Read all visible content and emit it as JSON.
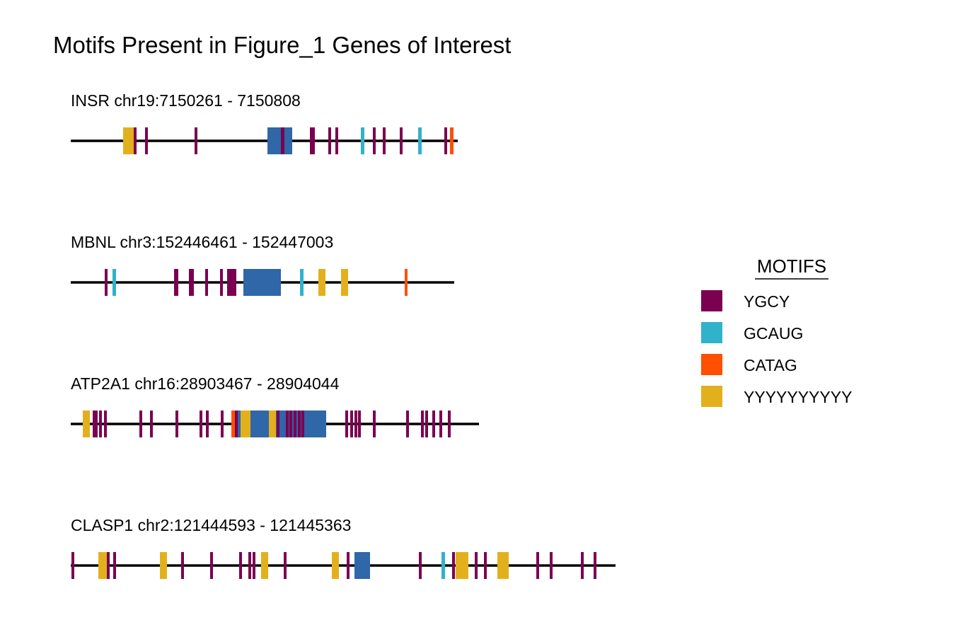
{
  "title": "Motifs Present in Figure_1 Genes of Interest",
  "legend": {
    "title": "MOTIFS",
    "items": [
      {
        "key": "YGCY",
        "label": "YGCY",
        "color": "#7b0051"
      },
      {
        "key": "GCAUG",
        "label": "GCAUG",
        "color": "#31b2cb"
      },
      {
        "key": "CATAG",
        "label": "CATAG",
        "color": "#ff4f00"
      },
      {
        "key": "YYYYYYYYYY",
        "label": "YYYYYYYYYY",
        "color": "#e3b01d"
      }
    ]
  },
  "colors": {
    "backbone": "#000000",
    "exon": "#2f67a8"
  },
  "genes": [
    {
      "name": "INSR",
      "label": "INSR chr19:7150261 - 7150808",
      "start": 7150261,
      "end": 7150808,
      "exons": [
        [
          7150539,
          7150574
        ]
      ],
      "motifs": [
        {
          "type": "YYYYYYYYYY",
          "start": 7150335,
          "end": 7150351
        },
        {
          "type": "YGCY",
          "start": 7150350,
          "end": 7150354
        },
        {
          "type": "YGCY",
          "start": 7150366,
          "end": 7150370
        },
        {
          "type": "YGCY",
          "start": 7150436,
          "end": 7150440
        },
        {
          "type": "YGCY",
          "start": 7150558,
          "end": 7150563
        },
        {
          "type": "YGCY",
          "start": 7150599,
          "end": 7150606
        },
        {
          "type": "YGCY",
          "start": 7150625,
          "end": 7150629
        },
        {
          "type": "YGCY",
          "start": 7150635,
          "end": 7150639
        },
        {
          "type": "GCAUG",
          "start": 7150671,
          "end": 7150676
        },
        {
          "type": "YGCY",
          "start": 7150688,
          "end": 7150692
        },
        {
          "type": "YGCY",
          "start": 7150702,
          "end": 7150706
        },
        {
          "type": "YGCY",
          "start": 7150726,
          "end": 7150730
        },
        {
          "type": "GCAUG",
          "start": 7150752,
          "end": 7150757
        },
        {
          "type": "YGCY",
          "start": 7150789,
          "end": 7150793
        },
        {
          "type": "CATAG",
          "start": 7150797,
          "end": 7150802
        }
      ]
    },
    {
      "name": "MBNL",
      "label": "MBNL chr3:152446461 - 152447003",
      "start": 152446461,
      "end": 152447003,
      "exons": [
        [
          152446705,
          152446758
        ]
      ],
      "motifs": [
        {
          "type": "YGCY",
          "start": 152446509,
          "end": 152446513
        },
        {
          "type": "GCAUG",
          "start": 152446520,
          "end": 152446525
        },
        {
          "type": "YGCY",
          "start": 152446607,
          "end": 152446613
        },
        {
          "type": "YGCY",
          "start": 152446628,
          "end": 152446635
        },
        {
          "type": "YGCY",
          "start": 152446651,
          "end": 152446655
        },
        {
          "type": "YGCY",
          "start": 152446672,
          "end": 152446676
        },
        {
          "type": "YGCY",
          "start": 152446682,
          "end": 152446695
        },
        {
          "type": "GCAUG",
          "start": 152446785,
          "end": 152446790
        },
        {
          "type": "YYYYYYYYYY",
          "start": 152446811,
          "end": 152446821
        },
        {
          "type": "YYYYYYYYYY",
          "start": 152446843,
          "end": 152446853
        },
        {
          "type": "CATAG",
          "start": 152446933,
          "end": 152446937
        }
      ]
    },
    {
      "name": "ATP2A1",
      "label": "ATP2A1 chr16:28903467 - 28904044",
      "start": 28903467,
      "end": 28904044,
      "exons": [
        [
          28903701,
          28903828
        ]
      ],
      "motifs": [
        {
          "type": "YYYYYYYYYY",
          "start": 28903484,
          "end": 28903494
        },
        {
          "type": "YGCY",
          "start": 28903498,
          "end": 28903505
        },
        {
          "type": "YGCY",
          "start": 28903507,
          "end": 28903511
        },
        {
          "type": "YGCY",
          "start": 28903514,
          "end": 28903518
        },
        {
          "type": "YGCY",
          "start": 28903564,
          "end": 28903568
        },
        {
          "type": "YGCY",
          "start": 28903579,
          "end": 28903583
        },
        {
          "type": "YGCY",
          "start": 28903615,
          "end": 28903619
        },
        {
          "type": "YGCY",
          "start": 28903649,
          "end": 28903653
        },
        {
          "type": "YGCY",
          "start": 28903658,
          "end": 28903662
        },
        {
          "type": "YGCY",
          "start": 28903679,
          "end": 28903683
        },
        {
          "type": "CATAG",
          "start": 28903694,
          "end": 28903699
        },
        {
          "type": "YGCY",
          "start": 28903699,
          "end": 28903703
        },
        {
          "type": "YYYYYYYYYY",
          "start": 28903707,
          "end": 28903721
        },
        {
          "type": "YYYYYYYYYY",
          "start": 28903747,
          "end": 28903757
        },
        {
          "type": "YGCY",
          "start": 28903758,
          "end": 28903762
        },
        {
          "type": "YGCY",
          "start": 28903771,
          "end": 28903775
        },
        {
          "type": "YGCY",
          "start": 28903776,
          "end": 28903780
        },
        {
          "type": "YGCY",
          "start": 28903782,
          "end": 28903786
        },
        {
          "type": "YGCY",
          "start": 28903788,
          "end": 28903792
        },
        {
          "type": "YGCY",
          "start": 28903793,
          "end": 28903797
        },
        {
          "type": "YGCY",
          "start": 28903855,
          "end": 28903859
        },
        {
          "type": "YGCY",
          "start": 28903862,
          "end": 28903866
        },
        {
          "type": "YGCY",
          "start": 28903868,
          "end": 28903872
        },
        {
          "type": "YGCY",
          "start": 28903873,
          "end": 28903877
        },
        {
          "type": "YGCY",
          "start": 28903894,
          "end": 28903898
        },
        {
          "type": "YGCY",
          "start": 28903941,
          "end": 28903945
        },
        {
          "type": "YGCY",
          "start": 28903962,
          "end": 28903966
        },
        {
          "type": "YGCY",
          "start": 28903968,
          "end": 28903972
        },
        {
          "type": "YGCY",
          "start": 28903978,
          "end": 28903982
        },
        {
          "type": "YGCY",
          "start": 28903988,
          "end": 28903992
        },
        {
          "type": "YGCY",
          "start": 28904000,
          "end": 28904004
        }
      ]
    },
    {
      "name": "CLASP1",
      "label": "CLASP1 chr2:121444593 - 121445363",
      "start": 121444593,
      "end": 121445363,
      "exons": [
        [
          121444994,
          121445016
        ]
      ],
      "motifs": [
        {
          "type": "YGCY",
          "start": 121444594,
          "end": 121444598
        },
        {
          "type": "YYYYYYYYYY",
          "start": 121444632,
          "end": 121444644
        },
        {
          "type": "YGCY",
          "start": 121444644,
          "end": 121444648
        },
        {
          "type": "YGCY",
          "start": 121444653,
          "end": 121444657
        },
        {
          "type": "YYYYYYYYYY",
          "start": 121444719,
          "end": 121444729
        },
        {
          "type": "YGCY",
          "start": 121444749,
          "end": 121444753
        },
        {
          "type": "YGCY",
          "start": 121444790,
          "end": 121444794
        },
        {
          "type": "YGCY",
          "start": 121444831,
          "end": 121444835
        },
        {
          "type": "YGCY",
          "start": 121444844,
          "end": 121444848
        },
        {
          "type": "YGCY",
          "start": 121444850,
          "end": 121444854
        },
        {
          "type": "YYYYYYYYYY",
          "start": 121444862,
          "end": 121444872
        },
        {
          "type": "YGCY",
          "start": 121444894,
          "end": 121444898
        },
        {
          "type": "YYYYYYYYYY",
          "start": 121444962,
          "end": 121444972
        },
        {
          "type": "YGCY",
          "start": 121444983,
          "end": 121444987
        },
        {
          "type": "YGCY",
          "start": 121445085,
          "end": 121445089
        },
        {
          "type": "GCAUG",
          "start": 121445117,
          "end": 121445122
        },
        {
          "type": "YGCY",
          "start": 121445132,
          "end": 121445136
        },
        {
          "type": "YYYYYYYYYY",
          "start": 121445137,
          "end": 121445155
        },
        {
          "type": "YGCY",
          "start": 121445164,
          "end": 121445168
        },
        {
          "type": "YGCY",
          "start": 121445177,
          "end": 121445181
        },
        {
          "type": "YYYYYYYYYY",
          "start": 121445196,
          "end": 121445212
        },
        {
          "type": "YGCY",
          "start": 121445251,
          "end": 121445255
        },
        {
          "type": "YGCY",
          "start": 121445270,
          "end": 121445274
        },
        {
          "type": "YGCY",
          "start": 121445314,
          "end": 121445318
        },
        {
          "type": "YGCY",
          "start": 121445332,
          "end": 121445336
        }
      ]
    }
  ]
}
